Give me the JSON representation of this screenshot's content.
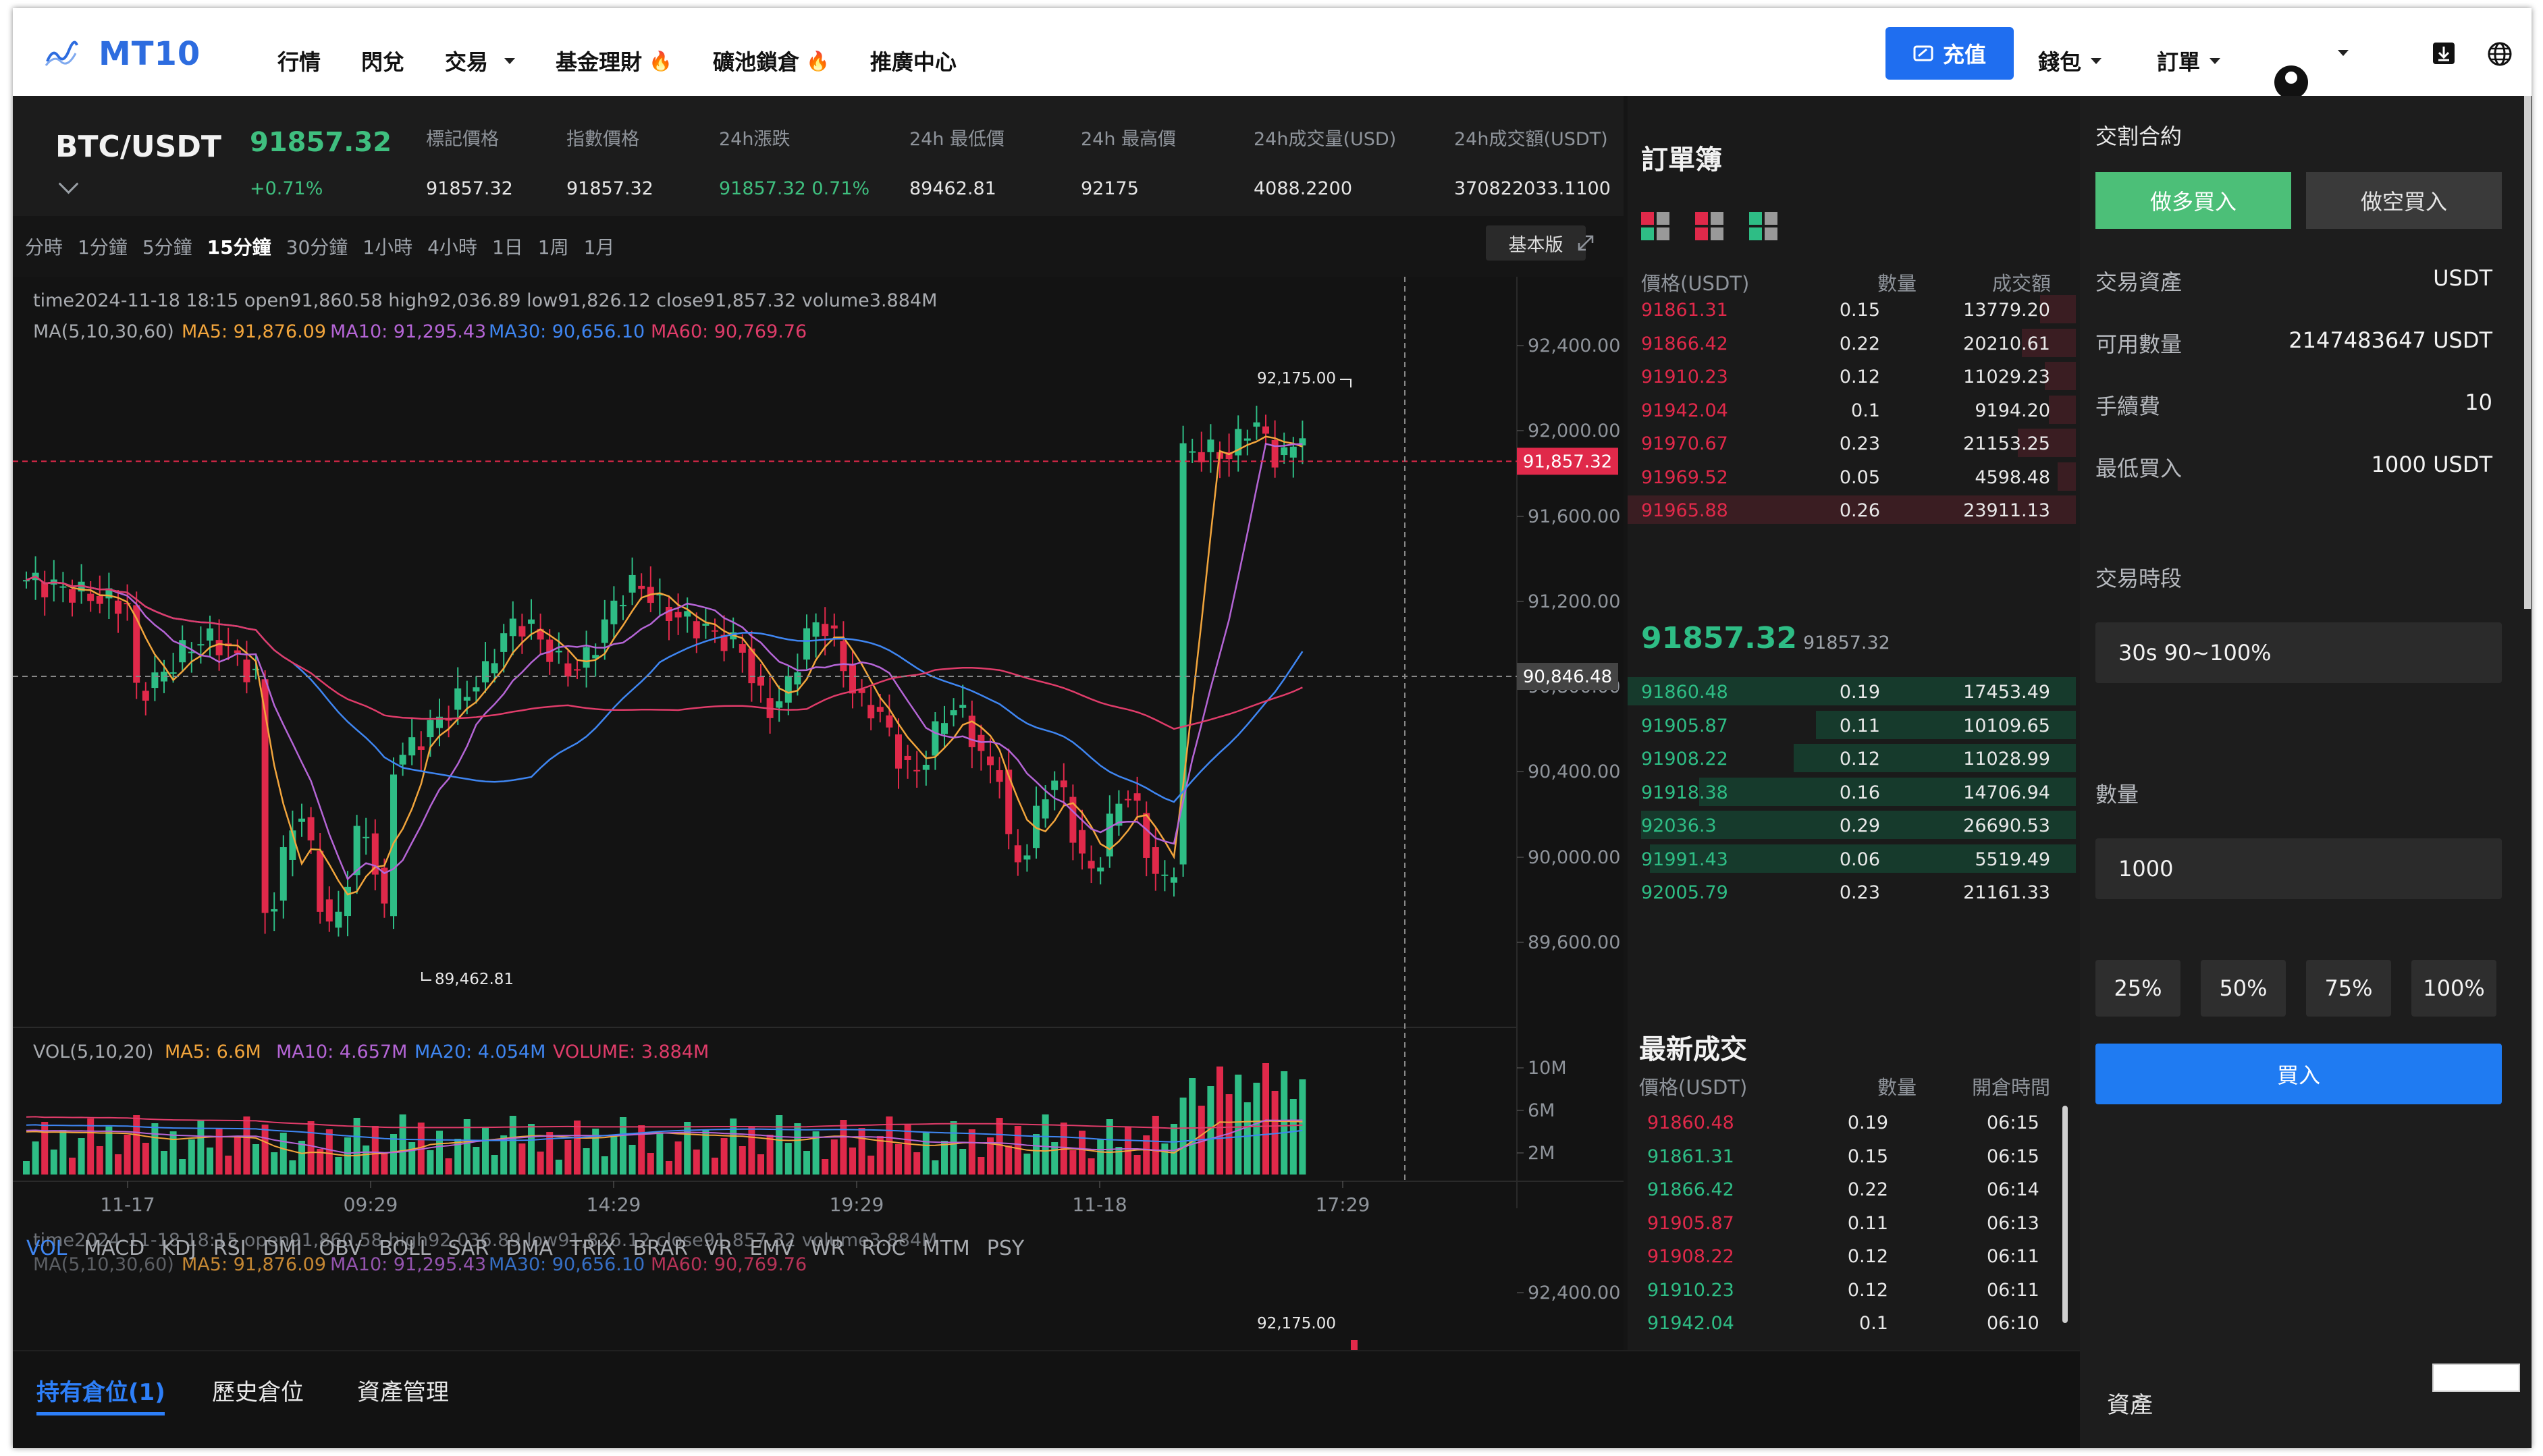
{
  "header": {
    "logo_text": "MT10",
    "nav": [
      {
        "label": "行情",
        "has_caret": false,
        "fire": false
      },
      {
        "label": "閃兌",
        "has_caret": false,
        "fire": false
      },
      {
        "label": "交易",
        "has_caret": true,
        "fire": false
      },
      {
        "label": "基金理財",
        "has_caret": false,
        "fire": true
      },
      {
        "label": "礦池鎖倉",
        "has_caret": false,
        "fire": true
      },
      {
        "label": "推廣中心",
        "has_caret": false,
        "fire": false
      }
    ],
    "recharge_label": "充值",
    "wallet_label": "錢包",
    "orders_label": "訂單"
  },
  "ticker": {
    "pair": "BTC/USDT",
    "price": "91857.32",
    "change": "+0.71%",
    "stats": [
      {
        "label": "標記價格",
        "value": "91857.32",
        "color": "#e6e6e6"
      },
      {
        "label": "指數價格",
        "value": "91857.32",
        "color": "#e6e6e6"
      },
      {
        "label": "24h漲跌",
        "value": "91857.32  0.71%",
        "color": "#3fbf7f"
      },
      {
        "label": "24h 最低價",
        "value": "89462.81",
        "color": "#e6e6e6"
      },
      {
        "label": "24h 最高價",
        "value": "92175",
        "color": "#e6e6e6"
      },
      {
        "label": "24h成交量(USD)",
        "value": "4088.2200",
        "color": "#e6e6e6"
      },
      {
        "label": "24h成交額(USDT)",
        "value": "370822033.1100",
        "color": "#e6e6e6"
      }
    ]
  },
  "timeframes": [
    "分時",
    "1分鐘",
    "5分鐘",
    "15分鐘",
    "30分鐘",
    "1小時",
    "4小時",
    "1日",
    "1周",
    "1月"
  ],
  "active_timeframe": "15分鐘",
  "basic_button": "基本版",
  "chart_info": {
    "ohlc_line": "time2024-11-18 18:15    open91,860.58    high92,036.89    low91,826.12    close91,857.32    volume3.884M",
    "ma_label": "MA(5,10,30,60)",
    "ma5": "MA5: 91,876.09",
    "ma10": "MA10: 91,295.43",
    "ma30": "MA30: 90,656.10",
    "ma60": "MA60: 90,769.76",
    "high_marker": "92,175.00",
    "low_marker": "89,462.81",
    "price_tag": "91,857.32",
    "cursor_tag": "90,846.48",
    "vol_label": "VOL(5,10,20)",
    "vol_ma5": "MA5: 6.6M",
    "vol_ma10": "MA10: 4.657M",
    "vol_ma20": "MA20: 4.054M",
    "vol_volume": "VOLUME: 3.884M",
    "y_ticks": [
      "92,400.00",
      "92,000.00",
      "91,600.00",
      "91,200.00",
      "90,800.00",
      "90,400.00",
      "90,000.00",
      "89,600.00"
    ],
    "vol_ticks": [
      "10M",
      "6M",
      "2M"
    ],
    "x_ticks": [
      "11-17",
      "09:29",
      "14:29",
      "19:29",
      "11-18",
      "17:29"
    ],
    "second_tick": "92,400.00",
    "colors": {
      "up": "#2ebd85",
      "down": "#e0294a",
      "ma5": "#f2a53c",
      "ma10": "#b565d6",
      "ma30": "#3f86f2",
      "ma60": "#e03c6a"
    }
  },
  "chart_data": {
    "type": "candlestick",
    "ylim": [
      89400,
      92600
    ],
    "high": 92175.0,
    "low": 89462.81,
    "last": 91857.32
  },
  "indicator_tabs": [
    "VOL",
    "MACD",
    "KDJ",
    "RSI",
    "DMI",
    "OBV",
    "BOLL",
    "SAR",
    "DMA",
    "TRIX",
    "BRAR",
    "VR",
    "EMV",
    "WR",
    "ROC",
    "MTM",
    "PSY"
  ],
  "orderbook": {
    "title": "訂單簿",
    "headers": [
      "價格(USDT)",
      "數量",
      "成交額"
    ],
    "asks": [
      {
        "price": "91861.31",
        "amount": "0.15",
        "total": "13779.20",
        "depth": 0.08
      },
      {
        "price": "91866.42",
        "amount": "0.22",
        "total": "20210.61",
        "depth": 0.12
      },
      {
        "price": "91910.23",
        "amount": "0.12",
        "total": "11029.23",
        "depth": 0.07
      },
      {
        "price": "91942.04",
        "amount": "0.1",
        "total": "9194.20",
        "depth": 0.06
      },
      {
        "price": "91970.67",
        "amount": "0.23",
        "total": "21153.25",
        "depth": 0.13
      },
      {
        "price": "91969.52",
        "amount": "0.05",
        "total": "4598.48",
        "depth": 0.04
      },
      {
        "price": "91965.88",
        "amount": "0.26",
        "total": "23911.13",
        "depth": 1.0
      }
    ],
    "mid_price": "91857.32",
    "mid_sub": "91857.32",
    "bids": [
      {
        "price": "91860.48",
        "amount": "0.19",
        "total": "17453.49",
        "depth": 1.0
      },
      {
        "price": "91905.87",
        "amount": "0.11",
        "total": "10109.65",
        "depth": 0.58
      },
      {
        "price": "91908.22",
        "amount": "0.12",
        "total": "11028.99",
        "depth": 0.63
      },
      {
        "price": "91918.38",
        "amount": "0.16",
        "total": "14706.94",
        "depth": 0.84
      },
      {
        "price": "92036.3",
        "amount": "0.29",
        "total": "26690.53",
        "depth": 0.97
      },
      {
        "price": "91991.43",
        "amount": "0.06",
        "total": "5519.49",
        "depth": 0.95
      },
      {
        "price": "92005.79",
        "amount": "0.23",
        "total": "21161.33",
        "depth": 0.0
      }
    ]
  },
  "latest_trades": {
    "title": "最新成交",
    "headers": [
      "價格(USDT)",
      "數量",
      "開倉時間"
    ],
    "rows": [
      {
        "price": "91860.48",
        "amount": "0.19",
        "time": "06:15",
        "side": "sell"
      },
      {
        "price": "91861.31",
        "amount": "0.15",
        "time": "06:15",
        "side": "buy"
      },
      {
        "price": "91866.42",
        "amount": "0.22",
        "time": "06:14",
        "side": "buy"
      },
      {
        "price": "91905.87",
        "amount": "0.11",
        "time": "06:13",
        "side": "sell"
      },
      {
        "price": "91908.22",
        "amount": "0.12",
        "time": "06:11",
        "side": "sell"
      },
      {
        "price": "91910.23",
        "amount": "0.12",
        "time": "06:11",
        "side": "buy"
      },
      {
        "price": "91942.04",
        "amount": "0.1",
        "time": "06:10",
        "side": "buy"
      }
    ]
  },
  "trade_panel": {
    "title": "交割合約",
    "long_label": "做多買入",
    "short_label": "做空買入",
    "asset_label": "交易資產",
    "asset_value": "USDT",
    "available_label": "可用數量",
    "available_value": "2147483647 USDT",
    "fee_label": "手續費",
    "fee_value": "10",
    "min_label": "最低買入",
    "min_value": "1000 USDT",
    "period_label": "交易時段",
    "period_value": "30s 90~100%",
    "amount_label": "數量",
    "amount_value": "1000",
    "pcts": [
      "25%",
      "50%",
      "75%",
      "100%"
    ],
    "buy_label": "買入"
  },
  "bottom": {
    "tabs": [
      "持有倉位(1)",
      "歷史倉位",
      "資產管理"
    ],
    "asset_label": "資產"
  }
}
